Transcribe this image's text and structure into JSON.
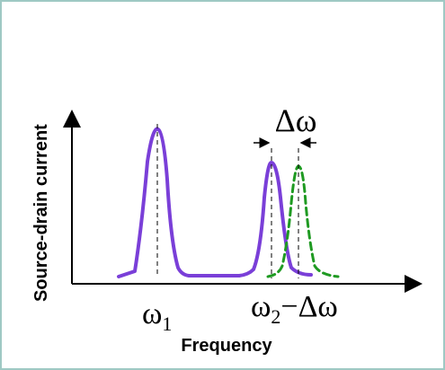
{
  "labels": {
    "y_axis": "Source-drain current",
    "x_axis": "Frequency",
    "omega1_main": "ω",
    "omega1_sub": "1",
    "omega2_main": "ω",
    "omega2_sub": "2",
    "shift_suffix": "−Δω",
    "delta_omega": "Δω"
  },
  "colors": {
    "frame": "#9fc9c4",
    "solid_peaks": "#7a3fd8",
    "shifted_peak": "#1f9a22",
    "axes": "#000000"
  }
}
